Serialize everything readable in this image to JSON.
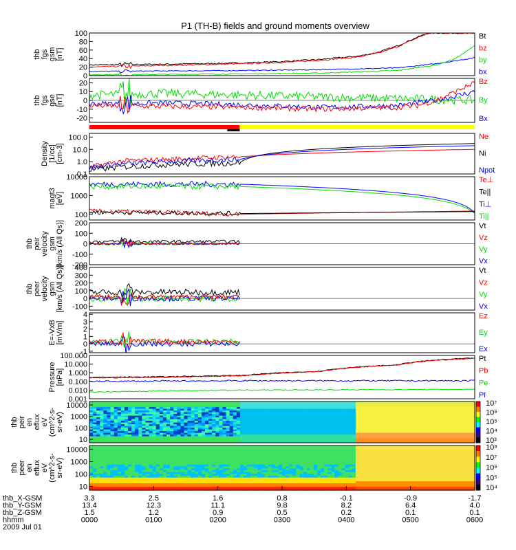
{
  "title": "P1 (TH-B) fields and ground moments overview",
  "colors": {
    "black": "#000000",
    "red": "#ff0000",
    "green": "#00dd00",
    "blue": "#0000ff",
    "yellow": "#ffff00"
  },
  "mode_bar": {
    "segments": [
      {
        "from": 0,
        "to": 0.39,
        "color": "red"
      },
      {
        "from": 0.39,
        "to": 1,
        "color": "yellow"
      }
    ]
  },
  "chart_data": [
    {
      "id": "fgs_gsm",
      "type": "line",
      "ylabel": [
        "thb",
        "fgs",
        "gsm",
        "[nT]"
      ],
      "ylim": [
        0,
        100
      ],
      "scale": "linear",
      "ticks": [
        {
          "v": 0,
          "label": "0"
        },
        {
          "v": 20,
          "label": "20"
        },
        {
          "v": 40,
          "label": "40"
        },
        {
          "v": 60,
          "label": "60"
        },
        {
          "v": 80,
          "label": "80"
        },
        {
          "v": 100,
          "label": "100"
        }
      ],
      "legend": [
        {
          "label": "Bt",
          "color": "black"
        },
        {
          "label": "bz",
          "color": "red"
        },
        {
          "label": "by",
          "color": "green"
        },
        {
          "label": "bx",
          "color": "blue"
        }
      ],
      "series": [
        {
          "color": "black",
          "x": [
            0,
            0.1,
            0.2,
            0.3,
            0.4,
            0.5,
            0.6,
            0.7,
            0.75,
            0.8,
            0.85,
            0.88
          ],
          "y": [
            25,
            26,
            27,
            28,
            30,
            33,
            38,
            46,
            55,
            70,
            90,
            100
          ],
          "noise": 1.5
        },
        {
          "color": "red",
          "x": [
            0,
            0.1,
            0.2,
            0.3,
            0.4,
            0.5,
            0.6,
            0.7,
            0.75,
            0.8,
            0.85,
            0.88
          ],
          "y": [
            20,
            22,
            24,
            26,
            28,
            31,
            36,
            44,
            53,
            68,
            88,
            100
          ],
          "noise": 1.5
        },
        {
          "color": "blue",
          "x": [
            0,
            0.2,
            0.4,
            0.6,
            0.8,
            0.9,
            1.0
          ],
          "y": [
            10,
            11,
            12,
            14,
            18,
            28,
            42
          ],
          "noise": 1
        },
        {
          "color": "green",
          "x": [
            0,
            0.2,
            0.4,
            0.6,
            0.8,
            0.9,
            0.95,
            1.0
          ],
          "y": [
            2,
            3,
            4,
            6,
            12,
            25,
            40,
            70
          ],
          "noise": 1
        }
      ]
    },
    {
      "id": "fgs_gse",
      "type": "line",
      "ylabel": [
        "thb",
        "fgs",
        "gse",
        "[nT]"
      ],
      "ylim": [
        -25,
        25
      ],
      "scale": "linear",
      "ticks": [
        {
          "v": -20,
          "label": "-20"
        },
        {
          "v": -10,
          "label": "-10"
        },
        {
          "v": 0,
          "label": "0"
        },
        {
          "v": 10,
          "label": "10"
        },
        {
          "v": 20,
          "label": "20"
        }
      ],
      "legend": [
        {
          "label": "Bz",
          "color": "red"
        },
        {
          "label": "By",
          "color": "green"
        },
        {
          "label": "Bx",
          "color": "blue"
        }
      ],
      "series": [
        {
          "color": "green",
          "x": [
            0,
            0.2,
            0.4,
            0.6,
            0.8,
            0.9,
            1.0
          ],
          "y": [
            6,
            8,
            6,
            4,
            2,
            1,
            0
          ],
          "noise": 5
        },
        {
          "color": "blue",
          "x": [
            0,
            0.2,
            0.4,
            0.6,
            0.8,
            0.9,
            1.0
          ],
          "y": [
            -4,
            -3,
            -5,
            -8,
            -6,
            0,
            10
          ],
          "noise": 3
        },
        {
          "color": "red",
          "x": [
            0,
            0.2,
            0.4,
            0.6,
            0.8,
            0.85,
            0.9,
            1.0
          ],
          "y": [
            -6,
            -7,
            -8,
            -10,
            -8,
            -6,
            0,
            20
          ],
          "noise": 3
        }
      ]
    },
    {
      "id": "density",
      "type": "line",
      "ylabel": [
        "Density",
        "[1/cc]",
        "[cm-3]"
      ],
      "ylim": [
        0.1,
        200
      ],
      "scale": "log",
      "ticks": [
        {
          "v": 0.1,
          "label": "0.1"
        },
        {
          "v": 1,
          "label": "1.0"
        },
        {
          "v": 10,
          "label": "10.0"
        },
        {
          "v": 100,
          "label": "100.0"
        }
      ],
      "legend": [
        {
          "label": "Ne",
          "color": "red"
        },
        {
          "label": "Ni",
          "color": "black"
        },
        {
          "label": "Npot",
          "color": "blue"
        }
      ],
      "series": [
        {
          "color": "red",
          "x": [
            0,
            0.1,
            0.2,
            0.39,
            1.0
          ],
          "y": [
            0.3,
            1.2,
            1.5,
            2.5,
            10
          ],
          "noise": 0.2,
          "cut": 0.39
        },
        {
          "color": "black",
          "x": [
            0,
            0.1,
            0.2,
            0.39,
            1.0
          ],
          "y": [
            0.2,
            0.4,
            0.6,
            0.8,
            30
          ],
          "noise": 0.25,
          "cut": 0.39
        },
        {
          "color": "blue",
          "x": [
            0,
            0.1,
            0.2,
            0.39,
            1.0
          ],
          "y": [
            0.3,
            0.7,
            1.0,
            1.5,
            20
          ],
          "noise": 0.2,
          "cut": 0.39
        }
      ]
    },
    {
      "id": "temp",
      "type": "line",
      "ylabel": [
        "magt3",
        "[eV]"
      ],
      "ylim": [
        50,
        10000
      ],
      "scale": "log",
      "ticks": [
        {
          "v": 100,
          "label": "100"
        },
        {
          "v": 1000,
          "label": "1000"
        },
        {
          "v": 10000,
          "label": "10000"
        }
      ],
      "legend": [
        {
          "label": "Te⊥",
          "color": "red"
        },
        {
          "label": "Te||",
          "color": "black"
        },
        {
          "label": "Ti⊥",
          "color": "blue"
        },
        {
          "label": "Ti||",
          "color": "green"
        }
      ],
      "series": [
        {
          "color": "blue",
          "x": [
            0,
            0.39,
            1.0
          ],
          "y": [
            4000,
            4000,
            120
          ],
          "noise": 0.15,
          "cut": 0.39
        },
        {
          "color": "green",
          "x": [
            0,
            0.39,
            1.0
          ],
          "y": [
            3000,
            3000,
            110
          ],
          "noise": 0.15,
          "cut": 0.39
        },
        {
          "color": "red",
          "x": [
            0,
            0.39,
            1.0
          ],
          "y": [
            150,
            100,
            150
          ],
          "noise": 0.12,
          "cut": 0.39
        },
        {
          "color": "black",
          "x": [
            0,
            0.39,
            1.0
          ],
          "y": [
            130,
            110,
            140
          ],
          "noise": 0.12,
          "cut": 0.39
        }
      ]
    },
    {
      "id": "vi",
      "type": "line",
      "ylabel": [
        "thb",
        "peir",
        "velocity",
        "gsm",
        "[km/s (All Qs)]"
      ],
      "ylim": [
        -200,
        200
      ],
      "scale": "linear",
      "ticks": [
        {
          "v": -200,
          "label": "-200"
        },
        {
          "v": -100,
          "label": "-100"
        },
        {
          "v": 0,
          "label": "0"
        },
        {
          "v": 100,
          "label": "100"
        },
        {
          "v": 200,
          "label": "200"
        }
      ],
      "legend": [
        {
          "label": "Vt",
          "color": "black"
        },
        {
          "label": "Vz",
          "color": "red"
        },
        {
          "label": "Vy",
          "color": "green"
        },
        {
          "label": "Vx",
          "color": "blue"
        }
      ],
      "series": [
        {
          "color": "black",
          "x": [
            0,
            0.39
          ],
          "y": [
            20,
            20
          ],
          "noise": 15,
          "end": 0.39
        },
        {
          "color": "green",
          "x": [
            0,
            0.39
          ],
          "y": [
            0,
            0
          ],
          "noise": 12,
          "end": 0.39
        },
        {
          "color": "blue",
          "x": [
            0,
            0.39
          ],
          "y": [
            0,
            0
          ],
          "noise": 10,
          "end": 0.39
        },
        {
          "color": "red",
          "x": [
            0,
            0.39
          ],
          "y": [
            0,
            0
          ],
          "noise": 10,
          "end": 0.39
        }
      ]
    },
    {
      "id": "ve",
      "type": "line",
      "ylabel": [
        "thb",
        "peer",
        "velocity",
        "gsm",
        "[km/s (All Qs)]"
      ],
      "ylim": [
        -150,
        400
      ],
      "scale": "linear",
      "ticks": [
        {
          "v": -100,
          "label": "-100"
        },
        {
          "v": 0,
          "label": "0"
        },
        {
          "v": 100,
          "label": "100"
        },
        {
          "v": 200,
          "label": "200"
        },
        {
          "v": 300,
          "label": "300"
        },
        {
          "v": 400,
          "label": "400"
        }
      ],
      "legend": [
        {
          "label": "Vt",
          "color": "black"
        },
        {
          "label": "Vz",
          "color": "red"
        },
        {
          "label": "Vy",
          "color": "green"
        },
        {
          "label": "Vx",
          "color": "blue"
        }
      ],
      "series": [
        {
          "color": "black",
          "x": [
            0,
            0.39
          ],
          "y": [
            80,
            80
          ],
          "noise": 40,
          "end": 0.39
        },
        {
          "color": "green",
          "x": [
            0,
            0.39
          ],
          "y": [
            0,
            0
          ],
          "noise": 40,
          "end": 0.39
        },
        {
          "color": "blue",
          "x": [
            0,
            0.39
          ],
          "y": [
            0,
            0
          ],
          "noise": 35,
          "end": 0.39
        },
        {
          "color": "red",
          "x": [
            0,
            0.39
          ],
          "y": [
            20,
            20
          ],
          "noise": 30,
          "end": 0.39
        }
      ]
    },
    {
      "id": "efield",
      "type": "line",
      "ylabel": [
        "E=-VxB",
        "[mV/m]"
      ],
      "ylim": [
        -1.2,
        4.2
      ],
      "scale": "linear",
      "ticks": [
        {
          "v": -1,
          "label": "-1"
        },
        {
          "v": 0,
          "label": "0"
        },
        {
          "v": 1,
          "label": "1"
        },
        {
          "v": 2,
          "label": "2"
        },
        {
          "v": 3,
          "label": "3"
        },
        {
          "v": 4,
          "label": "4"
        }
      ],
      "legend": [
        {
          "label": "Ez",
          "color": "red"
        },
        {
          "label": "Ey",
          "color": "green"
        },
        {
          "label": "Ex",
          "color": "blue"
        }
      ],
      "series": [
        {
          "color": "green",
          "x": [
            0,
            0.39
          ],
          "y": [
            0.3,
            0.3
          ],
          "noise": 0.35,
          "end": 0.39
        },
        {
          "color": "blue",
          "x": [
            0,
            0.39
          ],
          "y": [
            0,
            0
          ],
          "noise": 0.35,
          "end": 0.39
        },
        {
          "color": "red",
          "x": [
            0,
            0.39
          ],
          "y": [
            0.3,
            0.3
          ],
          "noise": 0.35,
          "end": 0.39
        }
      ]
    },
    {
      "id": "pressure",
      "type": "line",
      "ylabel": [
        "Pressure",
        "[nPa]"
      ],
      "ylim": [
        0.001,
        100
      ],
      "scale": "log",
      "ticks": [
        {
          "v": 0.001,
          "label": "0.001"
        },
        {
          "v": 0.01,
          "label": "0.010"
        },
        {
          "v": 0.1,
          "label": "0.100"
        },
        {
          "v": 1,
          "label": "1.000"
        },
        {
          "v": 10,
          "label": "10.000"
        },
        {
          "v": 100,
          "label": "100.000"
        }
      ],
      "legend": [
        {
          "label": "Pt",
          "color": "black"
        },
        {
          "label": "Pb",
          "color": "red"
        },
        {
          "label": "Pe",
          "color": "green"
        },
        {
          "label": "Pi",
          "color": "blue"
        }
      ],
      "series": [
        {
          "color": "black",
          "x": [
            0,
            0.2,
            0.4,
            0.6,
            0.8,
            1.0
          ],
          "y": [
            0.3,
            0.35,
            0.5,
            1.5,
            8,
            50
          ],
          "noise": 0.05
        },
        {
          "color": "red",
          "x": [
            0,
            0.2,
            0.4,
            0.6,
            0.8,
            1.0
          ],
          "y": [
            0.25,
            0.3,
            0.45,
            1.4,
            7.5,
            45
          ],
          "noise": 0.05
        },
        {
          "color": "blue",
          "x": [
            0,
            0.39,
            1.0
          ],
          "y": [
            0.1,
            0.12,
            0.12
          ],
          "noise": 0.08
        },
        {
          "color": "green",
          "x": [
            0,
            0.2,
            0.39,
            1.0
          ],
          "y": [
            0.006,
            0.008,
            0.01,
            0.012
          ],
          "noise": 0.05
        }
      ]
    },
    {
      "id": "ion_spec",
      "type": "heatmap",
      "ylabel": [
        "thb",
        "peir",
        "en",
        "eflux",
        "eV",
        "(cm^2-s-",
        "sr-eV)"
      ],
      "ylim": [
        5,
        20000
      ],
      "scale": "log",
      "ticks": [
        {
          "v": 10,
          "label": "10"
        },
        {
          "v": 100,
          "label": "100"
        },
        {
          "v": 1000,
          "label": "1000"
        },
        {
          "v": 10000,
          "label": "10000"
        }
      ],
      "colorbar": {
        "labels": [
          "10⁷",
          "10⁶",
          "10⁵",
          "10⁴",
          "10³"
        ]
      }
    },
    {
      "id": "elec_spec",
      "type": "heatmap",
      "ylabel": [
        "thb",
        "peer",
        "en",
        "eflux",
        "eV",
        "(cm^2-s-",
        "sr-eV)"
      ],
      "ylim": [
        5,
        20000
      ],
      "scale": "log",
      "ticks": [
        {
          "v": 10,
          "label": "10"
        },
        {
          "v": 100,
          "label": "100"
        },
        {
          "v": 1000,
          "label": "1000"
        },
        {
          "v": 10000,
          "label": "10000"
        }
      ],
      "colorbar": {
        "labels": [
          "10⁸",
          "10⁷",
          "10⁶",
          "10⁵",
          "10⁴"
        ]
      }
    }
  ],
  "xaxis": {
    "rows": [
      {
        "label": "thb_X-GSM",
        "values": [
          "3.3",
          "2.5",
          "1.6",
          "0.8",
          "-0.1",
          "-0.9",
          "-1.7"
        ]
      },
      {
        "label": "thb_Y-GSM",
        "values": [
          "13.4",
          "12.3",
          "11.1",
          "9.8",
          "8.2",
          "6.4",
          "4.0"
        ]
      },
      {
        "label": "thb_Z-GSM",
        "values": [
          "1.5",
          "1.2",
          "0.9",
          "0.5",
          "0.2",
          "0.1",
          "0.1"
        ]
      },
      {
        "label": "hhmm",
        "values": [
          "0000",
          "0100",
          "0200",
          "0300",
          "0400",
          "0500",
          "0600"
        ]
      },
      {
        "label": "2009 Jul 01",
        "values": []
      }
    ]
  }
}
